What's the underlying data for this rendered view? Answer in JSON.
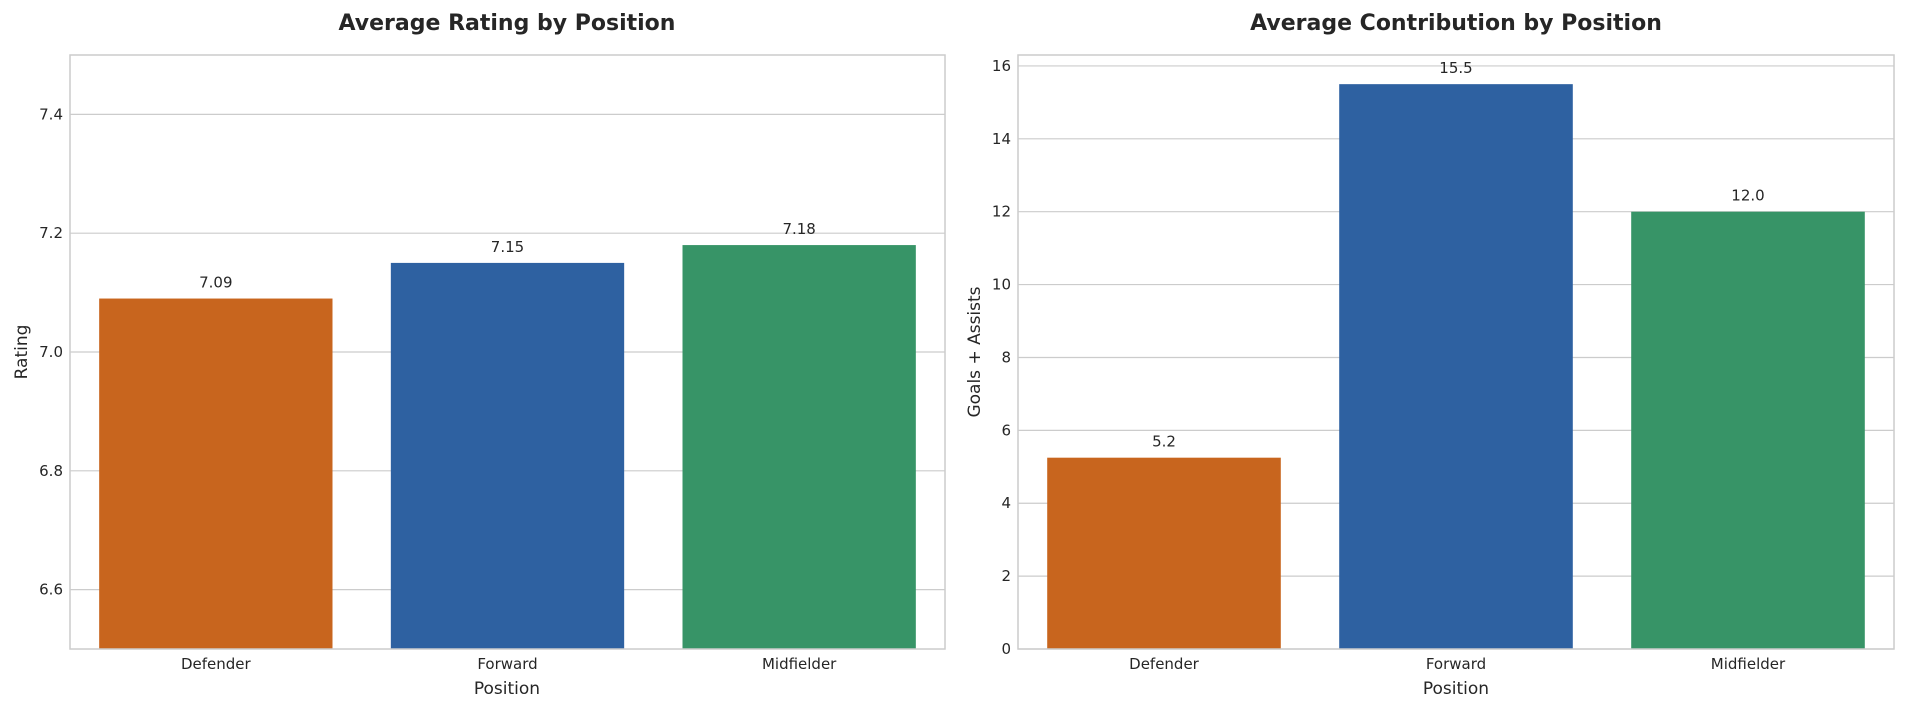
{
  "chart_data": [
    {
      "type": "bar",
      "title": "Average Rating by Position",
      "xlabel": "Position",
      "ylabel": "Rating",
      "categories": [
        "Defender",
        "Forward",
        "Midfielder"
      ],
      "values": [
        7.09,
        7.15,
        7.18
      ],
      "value_labels": [
        "7.09",
        "7.15",
        "7.18"
      ],
      "colors": [
        "#c8651e",
        "#2e61a1",
        "#379467"
      ],
      "ylim": [
        6.5,
        7.5
      ],
      "yticks": [
        6.6,
        6.8,
        7.0,
        7.2,
        7.4
      ],
      "ytick_labels": [
        "6.6",
        "6.8",
        "7.0",
        "7.2",
        "7.4"
      ],
      "grid": true
    },
    {
      "type": "bar",
      "title": "Average Contribution by Position",
      "xlabel": "Position",
      "ylabel": "Goals + Assists",
      "categories": [
        "Defender",
        "Forward",
        "Midfielder"
      ],
      "values": [
        5.25,
        15.5,
        12.0
      ],
      "value_labels": [
        "5.2",
        "15.5",
        "12.0"
      ],
      "colors": [
        "#c8651e",
        "#2e61a1",
        "#379467"
      ],
      "ylim": [
        0,
        16.3
      ],
      "yticks": [
        0,
        2,
        4,
        6,
        8,
        10,
        12,
        14,
        16
      ],
      "ytick_labels": [
        "0",
        "2",
        "4",
        "6",
        "8",
        "10",
        "12",
        "14",
        "16"
      ],
      "grid": true
    }
  ]
}
